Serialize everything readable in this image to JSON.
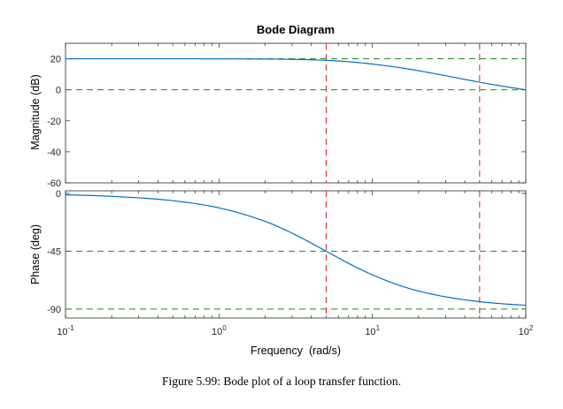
{
  "chart_data": [
    {
      "type": "line",
      "title": "Bode Diagram",
      "xlabel": "",
      "ylabel": "Magnitude (dB)",
      "xscale": "log",
      "xlim": [
        0.1,
        100
      ],
      "ylim": [
        -60,
        30
      ],
      "yticks": [
        20,
        0,
        -20,
        -40,
        -60
      ],
      "yticklabels": [
        "20",
        "0",
        "-20",
        "-40",
        "-60"
      ],
      "grid": false,
      "series": [
        {
          "color": "#0072BD",
          "x": [
            0.1,
            0.2,
            0.5,
            1,
            2,
            3,
            5,
            7,
            10,
            15,
            20,
            30,
            50,
            70,
            100
          ],
          "y": [
            20.0,
            20.0,
            20.0,
            19.96,
            19.83,
            19.63,
            18.98,
            18.11,
            16.6,
            14.3,
            12.3,
            9.1,
            4.9,
            2.4,
            0
          ]
        }
      ],
      "annotations": [
        {
          "kind": "hline",
          "y": 20,
          "color": "#1a8c1a",
          "style": "dashed"
        },
        {
          "kind": "hline",
          "y": 0,
          "color": "#1a8c1a",
          "style": "dashed"
        },
        {
          "kind": "vline",
          "x": 5,
          "color": "#e0202b",
          "style": "dashed"
        },
        {
          "kind": "vline",
          "x": 50,
          "color": "#e0202b",
          "style": "dashed"
        }
      ]
    },
    {
      "type": "line",
      "title": "",
      "xlabel": "Frequency  (rad/s)",
      "ylabel": "Phase (deg)",
      "xscale": "log",
      "xlim": [
        0.1,
        100
      ],
      "ylim": [
        -97,
        2
      ],
      "yticks": [
        0,
        -45,
        -90
      ],
      "yticklabels": [
        "0",
        "-45",
        "-90"
      ],
      "xticks": [
        0.1,
        1,
        10,
        100
      ],
      "xtick_bases": [
        "10",
        "10",
        "10",
        "10"
      ],
      "xtick_exps": [
        "-1",
        "0",
        "1",
        "2"
      ],
      "grid": false,
      "series": [
        {
          "color": "#0072BD",
          "x": [
            0.1,
            0.2,
            0.5,
            1,
            2,
            3,
            5,
            7,
            10,
            15,
            20,
            30,
            50,
            70,
            100
          ],
          "y": [
            -1.1,
            -2.3,
            -5.7,
            -11.3,
            -21.8,
            -31.0,
            -45.0,
            -54.5,
            -63.4,
            -71.6,
            -76.0,
            -80.5,
            -84.3,
            -85.9,
            -87.1
          ]
        }
      ],
      "annotations": [
        {
          "kind": "hline",
          "y": -45,
          "color": "#1a8c1a",
          "style": "dashed"
        },
        {
          "kind": "hline",
          "y": -90,
          "color": "#1a8c1a",
          "style": "dashed"
        },
        {
          "kind": "vline",
          "x": 5,
          "color": "#e0202b",
          "style": "dashed"
        },
        {
          "kind": "vline",
          "x": 50,
          "color": "#e0202b",
          "style": "dashed"
        }
      ]
    }
  ],
  "caption": "Figure 5.99: Bode plot of a loop transfer function."
}
